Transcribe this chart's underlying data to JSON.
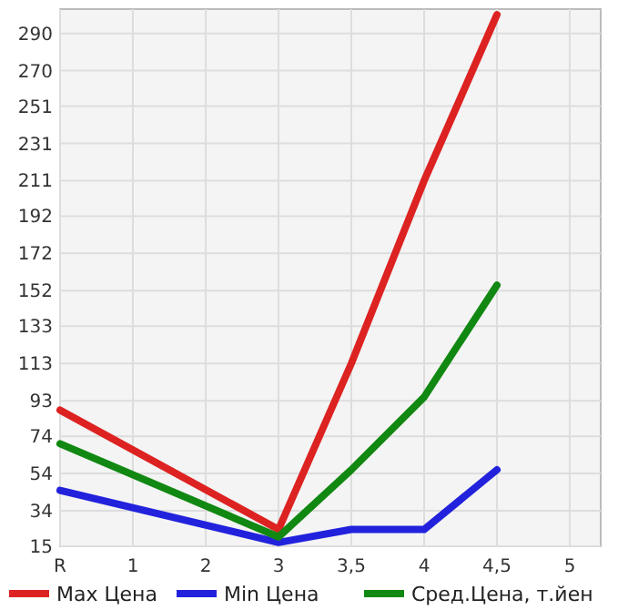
{
  "chart_data": {
    "type": "line",
    "categories": [
      "R",
      "1",
      "2",
      "3",
      "3,5",
      "4",
      "4,5",
      "5"
    ],
    "series": [
      {
        "name": "Max Цена",
        "color": "#dd2222",
        "values": [
          88,
          null,
          null,
          24,
          113,
          211,
          300,
          null
        ]
      },
      {
        "name": "Min Цена",
        "color": "#2222dd",
        "values": [
          45,
          null,
          null,
          17,
          24,
          24,
          56,
          null
        ]
      },
      {
        "name": "Сред.Цена, т.йен",
        "color": "#118811",
        "values": [
          70,
          null,
          null,
          20,
          56,
          95,
          155,
          null
        ]
      }
    ],
    "ylim": [
      15,
      303
    ],
    "yticks": [
      15,
      34,
      54,
      74,
      93,
      113,
      133,
      152,
      172,
      192,
      211,
      231,
      251,
      270,
      290
    ],
    "grid": true,
    "legend": "bottom",
    "marker": "none",
    "line_style": "solid"
  }
}
